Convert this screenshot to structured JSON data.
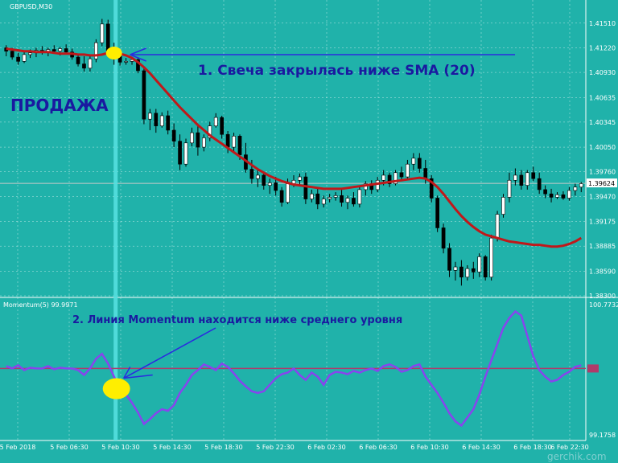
{
  "colors": {
    "background": "#20b2aa",
    "grid": "#ffffff",
    "sma": "#c0181a",
    "momentum": "#8844ee",
    "momentum_level": "#b03a6a",
    "annotation_text": "#1a1aa0",
    "arrow": "#2a2ae0",
    "highlight": "#ffee00",
    "vline": "#55e0e0",
    "candle_up_body": "#ffffff",
    "candle_down_body": "#000000",
    "current_price_line": "#c8c8c8",
    "price_label_bg": "#ffffff"
  },
  "header": {
    "symbol_label": "GBPUSD,M30",
    "momentum_label": "Momentum(5) 99.9971"
  },
  "annotations": {
    "signal_1": "1. Свеча закрылась ниже SMA (20)",
    "signal_2": "2. Линия Momentum находится ниже среднего уровня",
    "action": "ПРОДАЖА"
  },
  "watermark": "gerchik.com",
  "chart_data": [
    {
      "type": "candlestick",
      "title": "GBPUSD,M30",
      "ylim": [
        1.383,
        1.4165
      ],
      "yticks": [
        "1.41510",
        "1.41220",
        "1.40930",
        "1.40635",
        "1.40345",
        "1.40050",
        "1.39760",
        "1.39470",
        "1.39175",
        "1.38885",
        "1.38590",
        "1.38300"
      ],
      "current_price": "1.39624",
      "xticks": [
        "5 Feb 2018",
        "5 Feb 06:30",
        "5 Feb 10:30",
        "5 Feb 14:30",
        "5 Feb 18:30",
        "5 Feb 22:30",
        "6 Feb 02:30",
        "6 Feb 06:30",
        "6 Feb 10:30",
        "6 Feb 14:30",
        "6 Feb 18:30",
        "6 Feb 22:30"
      ],
      "candles": [
        [
          1.4122,
          1.4125,
          1.4112,
          1.4118
        ],
        [
          1.4118,
          1.4122,
          1.4108,
          1.4111
        ],
        [
          1.4111,
          1.4116,
          1.4102,
          1.4106
        ],
        [
          1.4106,
          1.4119,
          1.4104,
          1.4114
        ],
        [
          1.4114,
          1.412,
          1.411,
          1.4116
        ],
        [
          1.4116,
          1.4122,
          1.4111,
          1.4119
        ],
        [
          1.4119,
          1.4124,
          1.4114,
          1.4117
        ],
        [
          1.4117,
          1.4122,
          1.4112,
          1.412
        ],
        [
          1.412,
          1.4125,
          1.4116,
          1.4118
        ],
        [
          1.4118,
          1.4123,
          1.4113,
          1.4121
        ],
        [
          1.4121,
          1.4126,
          1.4115,
          1.4117
        ],
        [
          1.4117,
          1.4121,
          1.4108,
          1.4111
        ],
        [
          1.4111,
          1.4115,
          1.41,
          1.4103
        ],
        [
          1.4103,
          1.4112,
          1.4094,
          1.4098
        ],
        [
          1.4098,
          1.4112,
          1.4094,
          1.4109
        ],
        [
          1.4109,
          1.4132,
          1.4105,
          1.4128
        ],
        [
          1.4128,
          1.4156,
          1.4124,
          1.415
        ],
        [
          1.415,
          1.4155,
          1.4115,
          1.4118
        ],
        [
          1.4118,
          1.4128,
          1.4102,
          1.4112
        ],
        [
          1.4112,
          1.4118,
          1.4101,
          1.4105
        ],
        [
          1.4105,
          1.411,
          1.4102,
          1.4106
        ],
        [
          1.4106,
          1.411,
          1.4102,
          1.4108
        ],
        [
          1.4108,
          1.411,
          1.4092,
          1.4095
        ],
        [
          1.4095,
          1.4098,
          1.4032,
          1.4038
        ],
        [
          1.4038,
          1.405,
          1.4025,
          1.4045
        ],
        [
          1.4045,
          1.405,
          1.4022,
          1.403
        ],
        [
          1.403,
          1.4046,
          1.4028,
          1.4042
        ],
        [
          1.4042,
          1.4048,
          1.402,
          1.4025
        ],
        [
          1.4025,
          1.4033,
          1.4005,
          1.4012
        ],
        [
          1.4012,
          1.402,
          1.3978,
          1.3985
        ],
        [
          1.3985,
          1.4015,
          1.3982,
          1.401
        ],
        [
          1.401,
          1.4028,
          1.4006,
          1.4022
        ],
        [
          1.4022,
          1.403,
          1.3995,
          1.4005
        ],
        [
          1.4005,
          1.402,
          1.4,
          1.4016
        ],
        [
          1.4016,
          1.4035,
          1.4012,
          1.403
        ],
        [
          1.403,
          1.4045,
          1.4028,
          1.404
        ],
        [
          1.404,
          1.4042,
          1.4015,
          1.402
        ],
        [
          1.402,
          1.4024,
          1.3998,
          1.4005
        ],
        [
          1.4005,
          1.4022,
          1.4,
          1.4018
        ],
        [
          1.4018,
          1.402,
          1.399,
          1.3996
        ],
        [
          1.3996,
          1.401,
          1.3975,
          1.3979
        ],
        [
          1.3979,
          1.399,
          1.3962,
          1.3968
        ],
        [
          1.3968,
          1.398,
          1.3958,
          1.3972
        ],
        [
          1.3972,
          1.3976,
          1.3955,
          1.396
        ],
        [
          1.396,
          1.3968,
          1.395,
          1.3963
        ],
        [
          1.3963,
          1.397,
          1.3948,
          1.3954
        ],
        [
          1.3954,
          1.3958,
          1.3935,
          1.394
        ],
        [
          1.394,
          1.3968,
          1.3938,
          1.3962
        ],
        [
          1.3962,
          1.3972,
          1.3958,
          1.3966
        ],
        [
          1.3966,
          1.3974,
          1.396,
          1.397
        ],
        [
          1.397,
          1.3975,
          1.3938,
          1.3944
        ],
        [
          1.3944,
          1.3955,
          1.394,
          1.395
        ],
        [
          1.395,
          1.3956,
          1.3932,
          1.3938
        ],
        [
          1.3938,
          1.3948,
          1.3934,
          1.3944
        ],
        [
          1.3944,
          1.395,
          1.394,
          1.3946
        ],
        [
          1.3946,
          1.3952,
          1.3942,
          1.3948
        ],
        [
          1.3948,
          1.3955,
          1.3935,
          1.394
        ],
        [
          1.394,
          1.3948,
          1.3932,
          1.3945
        ],
        [
          1.3945,
          1.3952,
          1.3935,
          1.3938
        ],
        [
          1.3938,
          1.396,
          1.3934,
          1.3955
        ],
        [
          1.3955,
          1.3965,
          1.3948,
          1.3962
        ],
        [
          1.3962,
          1.3966,
          1.395,
          1.3955
        ],
        [
          1.3955,
          1.397,
          1.3952,
          1.3966
        ],
        [
          1.3966,
          1.3978,
          1.396,
          1.3972
        ],
        [
          1.3972,
          1.3975,
          1.3958,
          1.3962
        ],
        [
          1.3962,
          1.3978,
          1.396,
          1.3975
        ],
        [
          1.3975,
          1.3982,
          1.3965,
          1.397
        ],
        [
          1.397,
          1.399,
          1.3968,
          1.3985
        ],
        [
          1.3985,
          1.3998,
          1.3978,
          1.3992
        ],
        [
          1.3992,
          1.3998,
          1.3975,
          1.398
        ],
        [
          1.398,
          1.399,
          1.3962,
          1.3968
        ],
        [
          1.3968,
          1.3972,
          1.394,
          1.3945
        ],
        [
          1.3945,
          1.3948,
          1.3905,
          1.391
        ],
        [
          1.391,
          1.3915,
          1.388,
          1.3886
        ],
        [
          1.3886,
          1.3892,
          1.3852,
          1.386
        ],
        [
          1.386,
          1.387,
          1.3848,
          1.3864
        ],
        [
          1.3864,
          1.3872,
          1.3842,
          1.3852
        ],
        [
          1.3852,
          1.3866,
          1.3848,
          1.3862
        ],
        [
          1.3862,
          1.387,
          1.385,
          1.3858
        ],
        [
          1.3858,
          1.388,
          1.3852,
          1.3876
        ],
        [
          1.3876,
          1.3878,
          1.3848,
          1.3852
        ],
        [
          1.3852,
          1.3902,
          1.3848,
          1.3898
        ],
        [
          1.3898,
          1.393,
          1.3894,
          1.3926
        ],
        [
          1.3926,
          1.395,
          1.3922,
          1.3946
        ],
        [
          1.3946,
          1.3975,
          1.394,
          1.3966
        ],
        [
          1.3966,
          1.398,
          1.396,
          1.3972
        ],
        [
          1.3972,
          1.3978,
          1.3955,
          1.396
        ],
        [
          1.396,
          1.3978,
          1.3955,
          1.3975
        ],
        [
          1.3975,
          1.3982,
          1.3965,
          1.3968
        ],
        [
          1.3968,
          1.3975,
          1.395,
          1.3955
        ],
        [
          1.3955,
          1.396,
          1.3945,
          1.395
        ],
        [
          1.395,
          1.3956,
          1.394,
          1.3946
        ],
        [
          1.3946,
          1.3952,
          1.3944,
          1.3949
        ],
        [
          1.3949,
          1.3953,
          1.3943,
          1.3945
        ],
        [
          1.3945,
          1.3958,
          1.3942,
          1.3954
        ],
        [
          1.3954,
          1.3962,
          1.3948,
          1.3958
        ],
        [
          1.3958,
          1.3964,
          1.3952,
          1.3962
        ]
      ],
      "sma_20": [
        1.4121,
        1.412,
        1.4119,
        1.4118,
        1.4118,
        1.4117,
        1.4117,
        1.4117,
        1.4116,
        1.4115,
        1.4115,
        1.4115,
        1.4114,
        1.4114,
        1.4113,
        1.4113,
        1.4114,
        1.4116,
        1.4117,
        1.4115,
        1.4113,
        1.411,
        1.4105,
        1.4099,
        1.4092,
        1.4084,
        1.4076,
        1.4068,
        1.406,
        1.4052,
        1.4045,
        1.4038,
        1.4031,
        1.4025,
        1.4019,
        1.4014,
        1.4009,
        1.4004,
        1.3999,
        1.3994,
        1.3989,
        1.3984,
        1.3979,
        1.3975,
        1.3971,
        1.3968,
        1.3965,
        1.3963,
        1.3961,
        1.396,
        1.3959,
        1.3958,
        1.3957,
        1.3956,
        1.3956,
        1.3956,
        1.3956,
        1.3957,
        1.3958,
        1.3959,
        1.396,
        1.3961,
        1.3962,
        1.3963,
        1.3964,
        1.3965,
        1.3966,
        1.3967,
        1.3968,
        1.3969,
        1.3968,
        1.3964,
        1.3958,
        1.395,
        1.3941,
        1.3932,
        1.3924,
        1.3917,
        1.3911,
        1.3906,
        1.3902,
        1.39,
        1.3898,
        1.3896,
        1.3894,
        1.3893,
        1.3892,
        1.3891,
        1.389,
        1.389,
        1.3889,
        1.3888,
        1.3888,
        1.3889,
        1.3891,
        1.3894,
        1.3898
      ],
      "signal_candle_index": 18
    },
    {
      "type": "line",
      "title": "Momentum(5) 99.9971",
      "ylim": [
        99.1758,
        100.7732
      ],
      "yticks": [
        "100.7732",
        "99.1758"
      ],
      "level": 100,
      "series": [
        {
          "values": [
            100.03,
            100.0,
            100.04,
            99.98,
            100.01,
            100.0,
            100.0,
            100.03,
            99.99,
            100.01,
            100.0,
            100.0,
            99.98,
            99.92,
            100.0,
            100.12,
            100.18,
            100.06,
            99.9,
            99.75,
            99.68,
            99.58,
            99.46,
            99.32,
            99.38,
            99.45,
            99.5,
            99.48,
            99.55,
            99.7,
            99.8,
            99.92,
            99.98,
            100.05,
            100.02,
            99.98,
            100.06,
            100.02,
            99.94,
            99.85,
            99.78,
            99.72,
            99.7,
            99.72,
            99.8,
            99.88,
            99.93,
            99.95,
            100.0,
            99.92,
            99.86,
            99.95,
            99.9,
            99.8,
            99.92,
            99.96,
            99.95,
            99.93,
            99.97,
            99.95,
            99.98,
            100.0,
            99.97,
            100.03,
            100.05,
            100.02,
            99.96,
            99.98,
            100.03,
            100.05,
            99.9,
            99.8,
            99.7,
            99.58,
            99.45,
            99.35,
            99.3,
            99.4,
            99.5,
            99.68,
            99.9,
            100.1,
            100.3,
            100.5,
            100.62,
            100.7,
            100.65,
            100.4,
            100.15,
            99.98,
            99.9,
            99.84,
            99.86,
            99.92,
            99.96,
            100.02,
            100.04
          ]
        }
      ]
    }
  ]
}
